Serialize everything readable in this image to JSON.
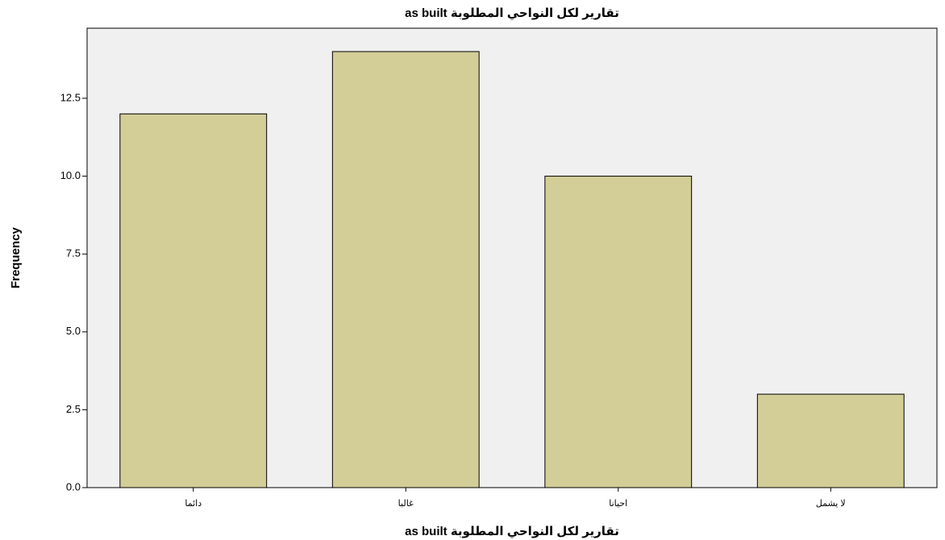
{
  "chart_data": {
    "type": "bar",
    "title": "تقارير لكل النواحي المطلوبة as built",
    "x_label": "تقارير لكل النواحي المطلوبة as built",
    "y_label": "Frequency",
    "categories": [
      "دائما",
      "غالبا",
      "احيانا",
      "لا يشمل"
    ],
    "values": [
      12,
      14,
      10,
      3
    ],
    "color": "#d3cd98",
    "ylim": [
      0,
      14.75
    ],
    "yticks": [
      {
        "value": 0,
        "label": "0.0"
      },
      2.5,
      {
        "value": 5,
        "label": "5.0"
      },
      7.5,
      {
        "value": 10,
        "label": "10.0"
      },
      12.5
    ]
  }
}
